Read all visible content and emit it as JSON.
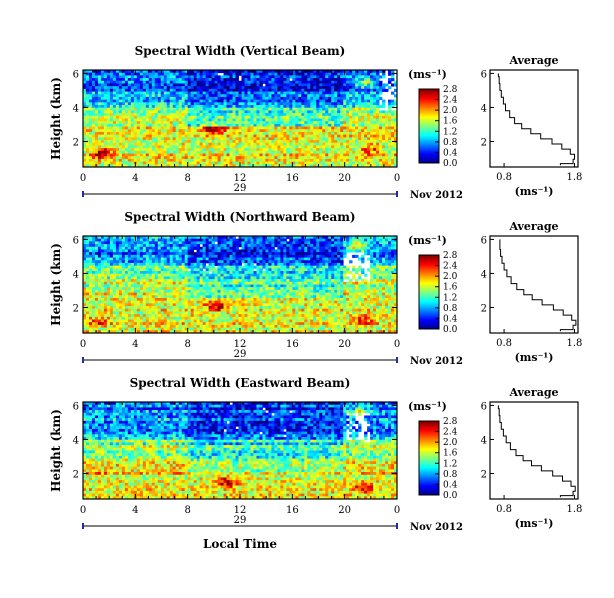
{
  "panels": [
    {
      "title": "Spectral Width (Vertical Beam)",
      "ylabel": "Height (km)",
      "yticks": [
        "2",
        "4",
        "6"
      ],
      "xticks": [
        "0",
        "4",
        "8",
        "12",
        "16",
        "20",
        "0"
      ],
      "date_day": "29",
      "date_month": "Nov 2012",
      "colorbar_unit": "(ms⁻¹)",
      "colorbar_ticks": [
        "0.0",
        "0.4",
        "0.8",
        "1.2",
        "1.6",
        "2.0",
        "2.4",
        "2.8"
      ],
      "avg_title": "Average",
      "avg_xticks": [
        "0.8",
        "1.8"
      ],
      "avg_xlabel": "(ms⁻¹)",
      "avg_yticks": [
        "2",
        "4",
        "6"
      ]
    },
    {
      "title": "Spectral Width (Northward Beam)",
      "ylabel": "Height (km)",
      "yticks": [
        "2",
        "4",
        "6"
      ],
      "xticks": [
        "0",
        "4",
        "8",
        "12",
        "16",
        "20",
        "0"
      ],
      "date_day": "29",
      "date_month": "Nov 2012",
      "colorbar_unit": "(ms⁻¹)",
      "colorbar_ticks": [
        "0.0",
        "0.4",
        "0.8",
        "1.2",
        "1.6",
        "2.0",
        "2.4",
        "2.8"
      ],
      "avg_title": "Average",
      "avg_xticks": [
        "0.8",
        "1.8"
      ],
      "avg_xlabel": "(ms⁻¹)",
      "avg_yticks": [
        "2",
        "4",
        "6"
      ]
    },
    {
      "title": "Spectral Width (Eastward Beam)",
      "ylabel": "Height (km)",
      "yticks": [
        "2",
        "4",
        "6"
      ],
      "xticks": [
        "0",
        "4",
        "8",
        "12",
        "16",
        "20",
        "0"
      ],
      "date_day": "29",
      "date_month": "Nov 2012",
      "colorbar_unit": "(ms⁻¹)",
      "colorbar_ticks": [
        "0.0",
        "0.4",
        "0.8",
        "1.2",
        "1.6",
        "2.0",
        "2.4",
        "2.8"
      ],
      "avg_title": "Average",
      "avg_xticks": [
        "0.8",
        "1.8"
      ],
      "avg_xlabel": "(ms⁻¹)",
      "avg_yticks": [
        "2",
        "4",
        "6"
      ]
    }
  ],
  "xlabel": "Local Time",
  "chart_data": [
    {
      "type": "heatmap",
      "title": "Spectral Width (Vertical Beam)",
      "ylabel": "Height (km)",
      "xlim": [
        0,
        24
      ],
      "ylim": [
        0.5,
        6.2
      ],
      "clim": [
        0.0,
        2.8
      ],
      "features": {
        "low_values_above_km": 4.3,
        "high_values_below_km": 2.8,
        "hot_spots": [
          {
            "x": 1.5,
            "y": 1.3,
            "value": 2.8
          },
          {
            "x": 10.0,
            "y": 2.7,
            "value": 2.8
          },
          {
            "x": 21.5,
            "y": 5.4,
            "value": 2.6
          },
          {
            "x": 22.0,
            "y": 1.5,
            "value": 2.4
          }
        ],
        "missing_regions": [
          {
            "x": [
              22.6,
              24.0
            ],
            "y": [
              3.8,
              6.2
            ]
          }
        ]
      }
    },
    {
      "type": "line",
      "title": "Average",
      "xlabel": "(ms⁻¹)",
      "xlim": [
        0.6,
        1.85
      ],
      "ylim": [
        0.5,
        6.2
      ],
      "x": [
        0.72,
        0.73,
        0.74,
        0.76,
        0.79,
        0.82,
        0.88,
        0.95,
        1.05,
        1.18,
        1.32,
        1.48,
        1.62,
        1.74,
        1.8,
        1.78,
        1.6
      ],
      "y": [
        6.0,
        5.6,
        5.2,
        4.8,
        4.4,
        4.0,
        3.6,
        3.2,
        2.9,
        2.6,
        2.3,
        2.0,
        1.7,
        1.4,
        1.1,
        0.8,
        0.6
      ]
    },
    {
      "type": "heatmap",
      "title": "Spectral Width (Northward Beam)",
      "ylabel": "Height (km)",
      "xlim": [
        0,
        24
      ],
      "ylim": [
        0.5,
        6.2
      ],
      "clim": [
        0.0,
        2.8
      ],
      "features": {
        "low_values_above_km": 4.5,
        "high_values_below_km": 2.6,
        "hot_spots": [
          {
            "x": 1.2,
            "y": 1.2,
            "value": 2.4
          },
          {
            "x": 10.2,
            "y": 2.1,
            "value": 2.8
          },
          {
            "x": 21.0,
            "y": 5.6,
            "value": 2.8
          },
          {
            "x": 21.5,
            "y": 1.3,
            "value": 2.4
          }
        ],
        "missing_regions": [
          {
            "x": [
              20.0,
              22.0
            ],
            "y": [
              3.5,
              5.2
            ]
          }
        ]
      }
    },
    {
      "type": "line",
      "title": "Average",
      "xlabel": "(ms⁻¹)",
      "xlim": [
        0.6,
        1.85
      ],
      "ylim": [
        0.5,
        6.2
      ],
      "x": [
        0.74,
        0.74,
        0.75,
        0.77,
        0.8,
        0.84,
        0.9,
        0.98,
        1.08,
        1.2,
        1.34,
        1.5,
        1.64,
        1.76,
        1.82,
        1.78,
        1.6
      ],
      "y": [
        6.0,
        5.6,
        5.2,
        4.8,
        4.4,
        4.0,
        3.6,
        3.2,
        2.9,
        2.6,
        2.3,
        2.0,
        1.7,
        1.4,
        1.1,
        0.8,
        0.6
      ]
    },
    {
      "type": "heatmap",
      "title": "Spectral Width (Eastward Beam)",
      "ylabel": "Height (km)",
      "xlim": [
        0,
        24
      ],
      "ylim": [
        0.5,
        6.2
      ],
      "clim": [
        0.0,
        2.8
      ],
      "features": {
        "low_values_above_km": 4.2,
        "high_values_below_km": 2.0,
        "hot_spots": [
          {
            "x": 11.0,
            "y": 1.5,
            "value": 2.8
          },
          {
            "x": 21.0,
            "y": 5.6,
            "value": 2.6
          },
          {
            "x": 21.5,
            "y": 1.2,
            "value": 2.6
          }
        ],
        "missing_regions": [
          {
            "x": [
              20.2,
              22.0
            ],
            "y": [
              3.8,
              5.6
            ]
          }
        ]
      }
    },
    {
      "type": "line",
      "title": "Average",
      "xlabel": "(ms⁻¹)",
      "xlim": [
        0.6,
        1.85
      ],
      "ylim": [
        0.5,
        6.2
      ],
      "x": [
        0.72,
        0.73,
        0.74,
        0.76,
        0.79,
        0.83,
        0.89,
        0.97,
        1.07,
        1.19,
        1.33,
        1.49,
        1.63,
        1.75,
        1.81,
        1.78,
        1.6
      ],
      "y": [
        6.0,
        5.6,
        5.2,
        4.8,
        4.4,
        4.0,
        3.6,
        3.2,
        2.9,
        2.6,
        2.3,
        2.0,
        1.7,
        1.4,
        1.1,
        0.8,
        0.6
      ]
    }
  ]
}
